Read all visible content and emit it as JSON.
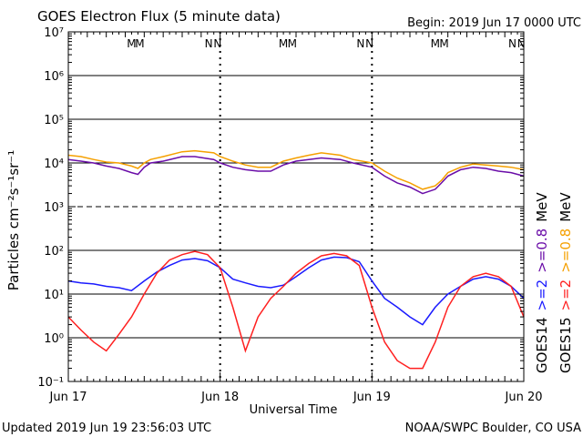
{
  "title": "GOES Electron Flux (5 minute data)",
  "begin": "Begin: 2019 Jun 17 0000 UTC",
  "updated": "Updated 2019 Jun 19 23:56:03 UTC",
  "credit": "NOAA/SWPC Boulder, CO USA",
  "chart_data": {
    "type": "line",
    "title": "GOES Electron Flux (5 minute data)",
    "xlabel": "Universal Time",
    "ylabel": "Particles cm⁻²s⁻¹sr⁻¹",
    "y_scale": "log",
    "ylim": [
      0.1,
      10000000
    ],
    "y_ticks": [
      "10⁻¹",
      "10⁰",
      "10¹",
      "10²",
      "10³",
      "10⁴",
      "10⁵",
      "10⁶",
      "10⁷"
    ],
    "x_unit": "hours since 2019 Jun 17 0000 UTC",
    "xlim": [
      0,
      72
    ],
    "x_ticks": [
      {
        "label": "Jun 17",
        "x": 0
      },
      {
        "label": "Jun 18",
        "x": 24
      },
      {
        "label": "Jun 19",
        "x": 48
      },
      {
        "label": "Jun 20",
        "x": 72
      }
    ],
    "grid": true,
    "threshold_line": 1000,
    "markers": [
      {
        "label": "M",
        "x": 10.0,
        "color": "#1a1aff"
      },
      {
        "label": "M",
        "x": 11.3,
        "color": "#ff2020"
      },
      {
        "label": "N",
        "x": 22.2,
        "color": "#1a1aff"
      },
      {
        "label": "N",
        "x": 23.6,
        "color": "#ff2020"
      },
      {
        "label": "M",
        "x": 34.0,
        "color": "#1a1aff"
      },
      {
        "label": "M",
        "x": 35.4,
        "color": "#ff2020"
      },
      {
        "label": "N",
        "x": 46.2,
        "color": "#1a1aff"
      },
      {
        "label": "N",
        "x": 47.6,
        "color": "#ff2020"
      },
      {
        "label": "M",
        "x": 58.0,
        "color": "#1a1aff"
      },
      {
        "label": "M",
        "x": 59.4,
        "color": "#ff2020"
      },
      {
        "label": "N",
        "x": 70.2,
        "color": "#1a1aff"
      },
      {
        "label": "N",
        "x": 71.6,
        "color": "#ff2020"
      }
    ],
    "legend": {
      "left_column": [
        {
          "text": "GOES14",
          "color": "#000000"
        },
        {
          "text": ">=2",
          "color": "#1a1aff"
        },
        {
          "text": ">=0.8",
          "color": "#6a0da8"
        },
        {
          "text": "MeV",
          "color": "#000000"
        }
      ],
      "right_column": [
        {
          "text": "GOES15",
          "color": "#000000"
        },
        {
          "text": ">=2",
          "color": "#ff2020"
        },
        {
          "text": ">=0.8",
          "color": "#f5a000"
        },
        {
          "text": "MeV",
          "color": "#000000"
        }
      ]
    },
    "series": [
      {
        "name": "GOES15 >=0.8 MeV",
        "color": "#f5a000",
        "x": [
          0,
          2,
          4,
          6,
          8,
          10,
          11,
          12,
          13,
          15,
          18,
          20,
          23,
          24,
          26,
          28,
          30,
          32,
          34,
          36,
          38,
          40,
          43,
          45,
          48,
          50,
          52,
          54,
          56,
          58,
          59,
          60,
          62,
          64,
          66,
          68,
          70,
          72
        ],
        "y": [
          15000,
          14000,
          12000,
          10500,
          10000,
          8500,
          7500,
          10000,
          12000,
          14000,
          18000,
          19000,
          17000,
          14000,
          11000,
          9000,
          8000,
          8000,
          11000,
          13000,
          15000,
          17000,
          15000,
          12000,
          10000,
          6500,
          4500,
          3500,
          2500,
          3000,
          4000,
          6000,
          8000,
          9500,
          9000,
          8500,
          8000,
          7000
        ]
      },
      {
        "name": "GOES14 >=0.8 MeV",
        "color": "#6a0da8",
        "x": [
          0,
          2,
          4,
          6,
          8,
          10,
          11,
          12,
          13,
          15,
          18,
          20,
          23,
          24,
          26,
          28,
          30,
          32,
          34,
          36,
          38,
          40,
          43,
          45,
          48,
          50,
          52,
          54,
          56,
          58,
          59,
          60,
          62,
          64,
          66,
          68,
          70,
          72
        ],
        "y": [
          12000,
          11000,
          10000,
          8500,
          7500,
          6000,
          5500,
          8000,
          10000,
          11000,
          14000,
          14000,
          12000,
          10000,
          8000,
          7000,
          6500,
          6500,
          9000,
          11000,
          12000,
          13000,
          12000,
          10000,
          8000,
          5000,
          3500,
          2800,
          2000,
          2500,
          3500,
          5000,
          7000,
          8000,
          7500,
          6500,
          6000,
          5000
        ]
      },
      {
        "name": "GOES14 >=2 MeV",
        "color": "#1a1aff",
        "x": [
          0,
          2,
          4,
          6,
          8,
          10,
          12,
          14,
          16,
          18,
          20,
          22,
          24,
          26,
          28,
          30,
          32,
          34,
          36,
          38,
          40,
          42,
          44,
          46,
          48,
          50,
          52,
          54,
          56,
          58,
          60,
          62,
          64,
          66,
          68,
          70,
          72
        ],
        "y": [
          20,
          18,
          17,
          15,
          14,
          12,
          20,
          32,
          45,
          60,
          65,
          58,
          40,
          22,
          18,
          15,
          14,
          16,
          25,
          40,
          60,
          70,
          68,
          55,
          20,
          8,
          5,
          3,
          2,
          5,
          10,
          15,
          22,
          25,
          22,
          15,
          8
        ]
      },
      {
        "name": "GOES15 >=2 MeV",
        "color": "#ff2020",
        "x": [
          0,
          2,
          4,
          6,
          8,
          10,
          12,
          14,
          16,
          18,
          20,
          22,
          24,
          26,
          28,
          30,
          32,
          34,
          36,
          38,
          40,
          42,
          44,
          46,
          48,
          50,
          52,
          54,
          56,
          58,
          60,
          62,
          64,
          66,
          68,
          70,
          72
        ],
        "y": [
          3,
          1.5,
          0.8,
          0.5,
          1.2,
          3,
          10,
          30,
          60,
          80,
          95,
          80,
          40,
          5,
          0.5,
          3,
          8,
          15,
          30,
          50,
          75,
          85,
          75,
          45,
          5,
          0.8,
          0.3,
          0.2,
          0.2,
          0.8,
          5,
          15,
          25,
          30,
          25,
          15,
          3
        ]
      }
    ]
  }
}
